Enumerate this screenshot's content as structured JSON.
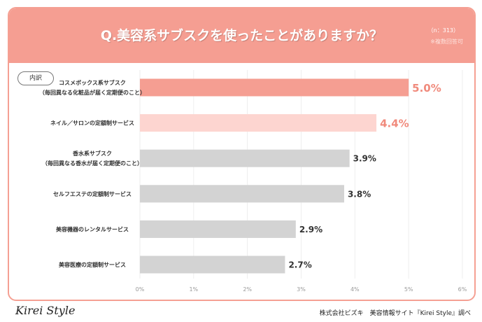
{
  "header": {
    "title": "Q.美容系サブスクを使ったことがありますか？",
    "sample": "（n：313）",
    "note": "※複数回答可"
  },
  "badge": "内訳",
  "footer": {
    "logo": "Kirei Style",
    "source": "株式会社ビズキ　美容情報サイト『Kirei Style』調べ"
  },
  "colors": {
    "top1": "#f59e92",
    "top2": "#fdd5d0",
    "other": "#d3d3d3",
    "label_top": "#f08a7c",
    "label_other": "#333333"
  },
  "chart_data": {
    "type": "bar",
    "orientation": "horizontal",
    "categories": [
      [
        "コスメボックス系サブスク",
        "（毎回異なる化粧品が届く定期便のこと）"
      ],
      [
        "ネイル／サロンの定額制サービス"
      ],
      [
        "香水系サブスク",
        "（毎回異なる香水が届く定期便のこと）"
      ],
      [
        "セルフエステの定額制サービス"
      ],
      [
        "美容機器のレンタルサービス"
      ],
      [
        "美容医療の定額制サービス"
      ]
    ],
    "values": [
      5.0,
      4.4,
      3.9,
      3.8,
      2.9,
      2.7
    ],
    "value_labels": [
      "5.0%",
      "4.4%",
      "3.9%",
      "3.8%",
      "2.9%",
      "2.7%"
    ],
    "xlim": [
      0,
      6
    ],
    "ticks": [
      "0%",
      "1%",
      "2%",
      "3%",
      "4%",
      "5%",
      "6%"
    ],
    "grid": true
  }
}
